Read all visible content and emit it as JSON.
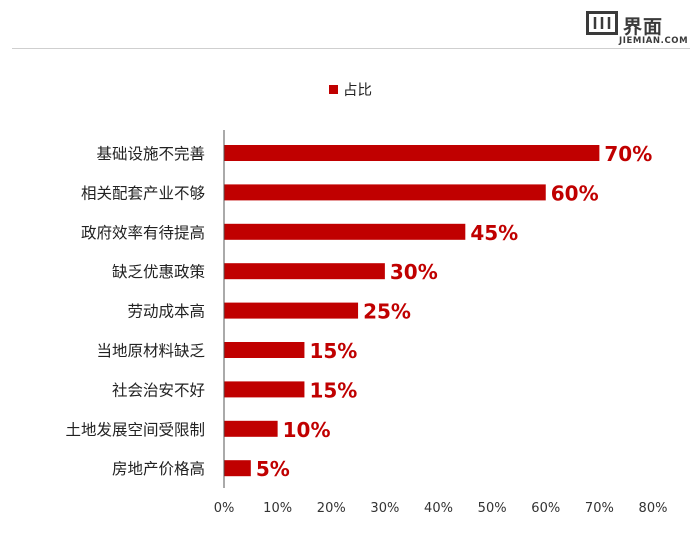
{
  "header": {
    "logo_cn": "界面",
    "logo_en": "JIEMIAN.COM"
  },
  "colors": {
    "bar": "#c00000",
    "axis": "#555555",
    "text": "#222222"
  },
  "chart_data": {
    "type": "bar",
    "orientation": "horizontal",
    "title": "",
    "xlabel": "",
    "ylabel": "",
    "legend": {
      "entries": [
        "占比"
      ],
      "placement": "top"
    },
    "categories": [
      "基础设施不完善",
      "相关配套产业不够",
      "政府效率有待提高",
      "缺乏优惠政策",
      "劳动成本高",
      "当地原材料缺乏",
      "社会治安不好",
      "土地发展空间受限制",
      "房地产价格高"
    ],
    "series": [
      {
        "name": "占比",
        "values": [
          0.7,
          0.6,
          0.45,
          0.3,
          0.25,
          0.15,
          0.15,
          0.1,
          0.05
        ],
        "labels": [
          "70%",
          "60%",
          "45%",
          "30%",
          "25%",
          "15%",
          "15%",
          "10%",
          "5%"
        ]
      }
    ],
    "xlim": [
      0,
      0.8
    ],
    "xticks": [
      "0%",
      "10%",
      "20%",
      "30%",
      "40%",
      "50%",
      "60%",
      "70%",
      "80%"
    ],
    "grid": false
  }
}
